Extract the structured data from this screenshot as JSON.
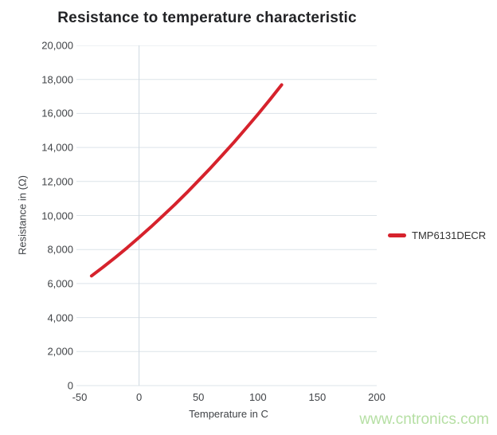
{
  "watermark": {
    "text": "www.cntronics.com",
    "color": "#b5dfa3"
  },
  "chart_data": {
    "type": "line",
    "title": "Resistance to temperature characteristic",
    "xlabel": "Temperature in C",
    "ylabel": "Resistance in (Ω)",
    "xlim": [
      -50,
      200
    ],
    "ylim": [
      0,
      20000
    ],
    "x_ticks": [
      -50,
      0,
      50,
      100,
      150,
      200
    ],
    "x_tick_labels": [
      "-50",
      "0",
      "50",
      "100",
      "150",
      "200"
    ],
    "y_ticks": [
      0,
      2000,
      4000,
      6000,
      8000,
      10000,
      12000,
      14000,
      16000,
      18000,
      20000
    ],
    "y_tick_labels": [
      "0",
      "2,000",
      "4,000",
      "6,000",
      "8,000",
      "10,000",
      "12,000",
      "14,000",
      "16,000",
      "18,000",
      "20,000"
    ],
    "grid": {
      "horizontal": true,
      "vertical_at_x": [
        0
      ],
      "color": "#dce3e9",
      "vertical_color": "#cfd9e1"
    },
    "legend": {
      "position": "right",
      "entries": [
        "TMP6131DECR"
      ]
    },
    "series": [
      {
        "name": "TMP6131DECR",
        "color": "#d6222c",
        "line_width": 4,
        "points": [
          [
            -40,
            6450
          ],
          [
            -30,
            6980
          ],
          [
            -20,
            7530
          ],
          [
            -10,
            8110
          ],
          [
            0,
            8710
          ],
          [
            10,
            9330
          ],
          [
            20,
            9980
          ],
          [
            30,
            10640
          ],
          [
            40,
            11330
          ],
          [
            50,
            12050
          ],
          [
            60,
            12780
          ],
          [
            70,
            13540
          ],
          [
            80,
            14320
          ],
          [
            90,
            15130
          ],
          [
            100,
            15950
          ],
          [
            110,
            16800
          ],
          [
            120,
            17680
          ]
        ]
      }
    ]
  }
}
